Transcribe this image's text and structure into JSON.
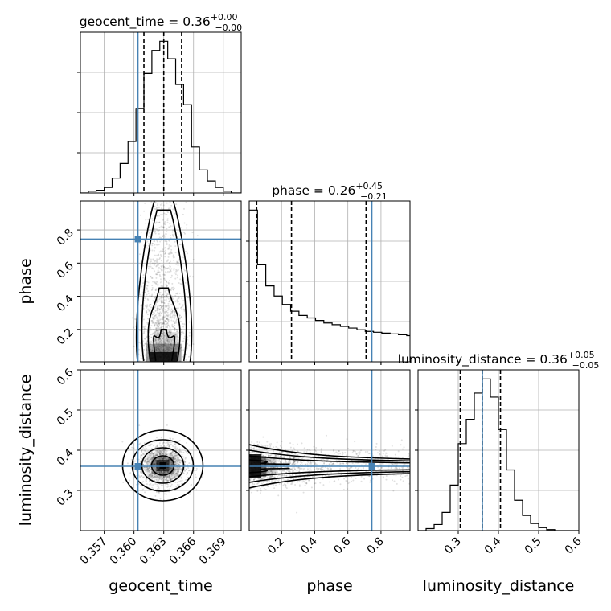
{
  "chart_data": {
    "type": "corner",
    "parameters": [
      "geocent_time",
      "phase",
      "luminosity_distance"
    ],
    "truths": [
      0.3604,
      0.745,
      0.36
    ],
    "truth_color": "#4682b4",
    "grid": true,
    "ranges": [
      [
        0.3546,
        0.3708
      ],
      [
        0.005,
        0.975
      ],
      [
        0.2,
        0.6
      ]
    ],
    "ticks": {
      "geocent_time": [
        "0.357",
        "0.360",
        "0.363",
        "0.366",
        "0.369"
      ],
      "phase": [
        "0.2",
        "0.4",
        "0.6",
        "0.8"
      ],
      "luminosity_distance": [
        "0.3",
        "0.4",
        "0.5",
        "0.6"
      ]
    },
    "marginal_titles": {
      "geocent_time": {
        "name": "geocent_time",
        "median": "0.36",
        "plus": "+0.00",
        "minus": "−0.00"
      },
      "phase": {
        "name": "phase",
        "median": "0.26",
        "plus": "+0.45",
        "minus": "−0.21"
      },
      "luminosity_distance": {
        "name": "luminosity_distance",
        "median": "0.36",
        "plus": "+0.05",
        "minus": "−0.05"
      }
    },
    "quantiles": {
      "geocent_time": [
        0.361,
        0.363,
        0.3648
      ],
      "phase": [
        0.05,
        0.26,
        0.71
      ],
      "luminosity_distance": [
        0.305,
        0.36,
        0.405
      ]
    },
    "histograms": {
      "geocent_time": {
        "edges": [
          0.3546,
          0.3554,
          0.3562,
          0.357,
          0.3578,
          0.3586,
          0.3594,
          0.3602,
          0.361,
          0.3618,
          0.3626,
          0.3634,
          0.3642,
          0.365,
          0.3658,
          0.3666,
          0.3674,
          0.3682,
          0.369,
          0.3698,
          0.3708
        ],
        "counts": [
          0,
          2,
          3,
          6,
          16,
          32,
          56,
          92,
          130,
          155,
          165,
          146,
          118,
          96,
          50,
          25,
          13,
          6,
          2,
          0
        ]
      },
      "phase": {
        "edges": [
          0.005,
          0.055,
          0.105,
          0.155,
          0.205,
          0.255,
          0.305,
          0.355,
          0.405,
          0.455,
          0.505,
          0.555,
          0.605,
          0.655,
          0.705,
          0.755,
          0.805,
          0.855,
          0.905,
          0.955,
          0.975
        ],
        "counts": [
          180,
          115,
          90,
          78,
          68,
          60,
          55,
          52,
          49,
          46,
          44,
          42,
          40,
          38,
          36,
          35,
          34,
          33,
          32,
          31
        ]
      },
      "luminosity_distance": {
        "edges": [
          0.2,
          0.22,
          0.24,
          0.26,
          0.28,
          0.3,
          0.32,
          0.34,
          0.36,
          0.38,
          0.4,
          0.42,
          0.44,
          0.46,
          0.48,
          0.5,
          0.52,
          0.54,
          0.56,
          0.58,
          0.6
        ],
        "counts": [
          0,
          2,
          6,
          18,
          45,
          86,
          110,
          136,
          150,
          132,
          100,
          60,
          30,
          15,
          7,
          3,
          1,
          0,
          0,
          0
        ]
      }
    }
  }
}
